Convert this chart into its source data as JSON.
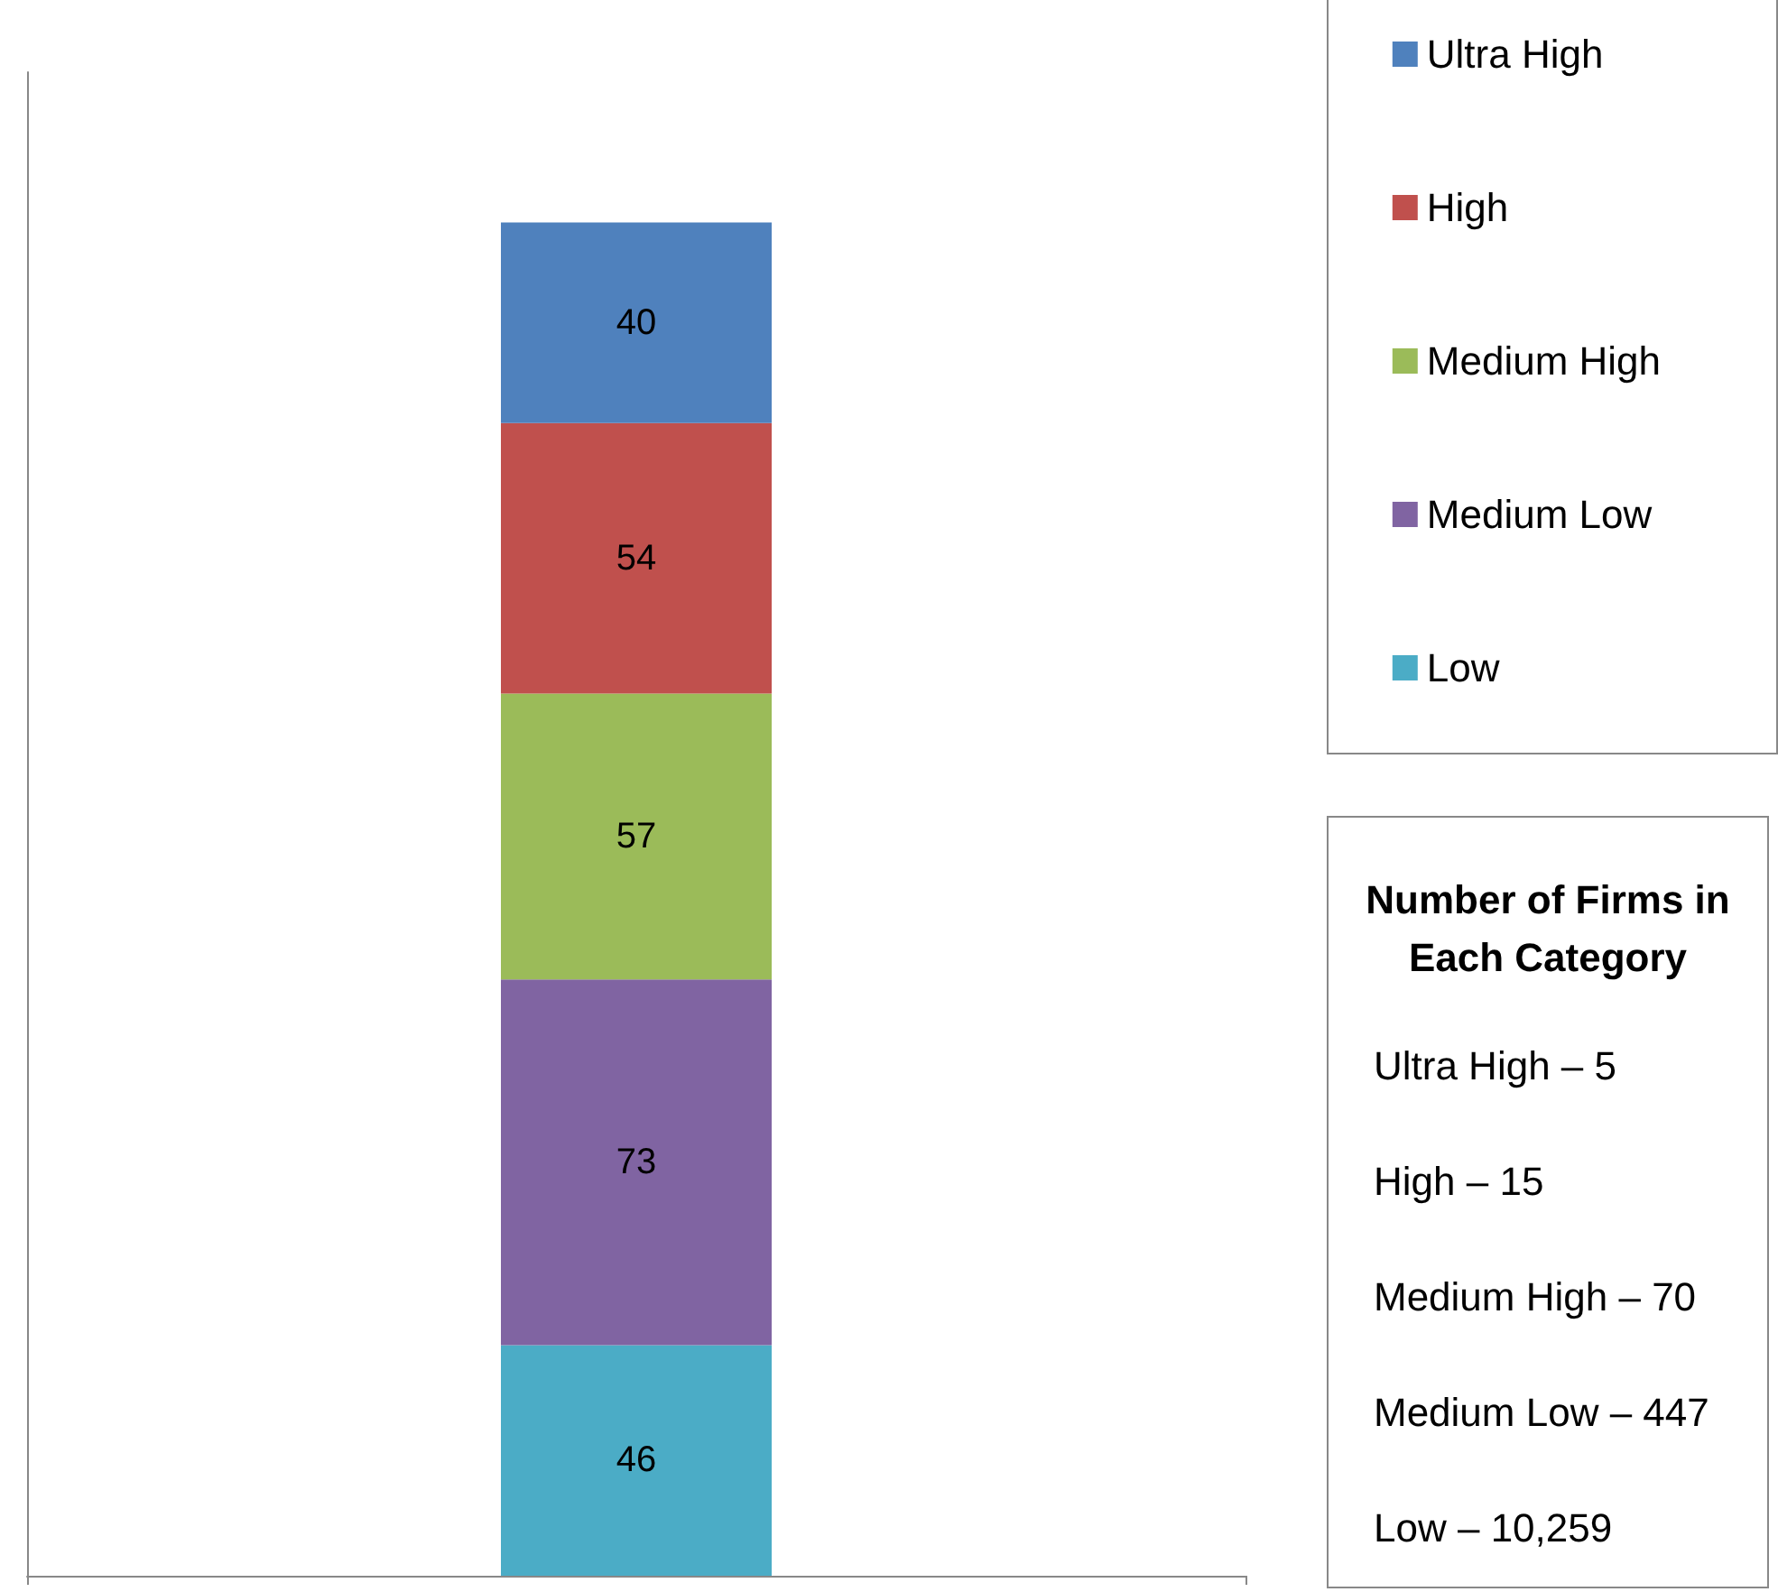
{
  "chart_data": {
    "type": "bar",
    "stacked": true,
    "categories": [
      null
    ],
    "tick_labels": false,
    "data_labels": true,
    "legend": "top right",
    "grid": false,
    "series": [
      {
        "name": "Low",
        "color": "#4bacc6",
        "values": [
          46
        ]
      },
      {
        "name": "Medium Low",
        "color": "#8064a2",
        "values": [
          73
        ]
      },
      {
        "name": "Medium High",
        "color": "#9bbb59",
        "values": [
          57
        ]
      },
      {
        "name": "High",
        "color": "#c0504d",
        "values": [
          54
        ]
      },
      {
        "name": "Ultra High",
        "color": "#4f81bd",
        "values": [
          40
        ]
      }
    ],
    "annotations": [
      "Number of Firms in Each Category",
      "Ultra High – 5",
      "High – 15",
      "Medium High – 70",
      "Medium Low – 447",
      "Low – 10,259"
    ]
  }
}
